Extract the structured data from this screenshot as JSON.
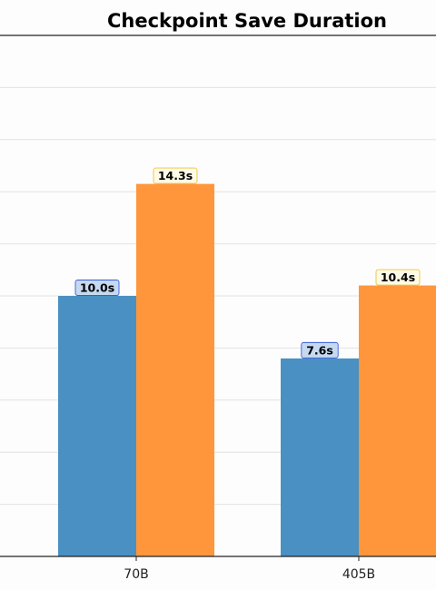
{
  "chart_data": {
    "type": "bar",
    "title": "Checkpoint Save Duration",
    "xlabel": "",
    "ylabel": "",
    "categories": [
      "70B",
      "405B"
    ],
    "series": [
      {
        "values": [
          10.0,
          7.6
        ],
        "color": "#4a90c2",
        "label_border": "#3b5bdb",
        "label_fill": "#c5d9f1"
      },
      {
        "values": [
          14.3,
          10.4
        ],
        "color": "#ff963c",
        "label_border": "#f0c040",
        "label_fill": "#fffbe6"
      }
    ],
    "data_labels": [
      [
        "10.0s",
        "7.6s"
      ],
      [
        "14.3s",
        "10.4s"
      ]
    ],
    "ylim": [
      0,
      20
    ],
    "grid": true,
    "legend": "none"
  }
}
